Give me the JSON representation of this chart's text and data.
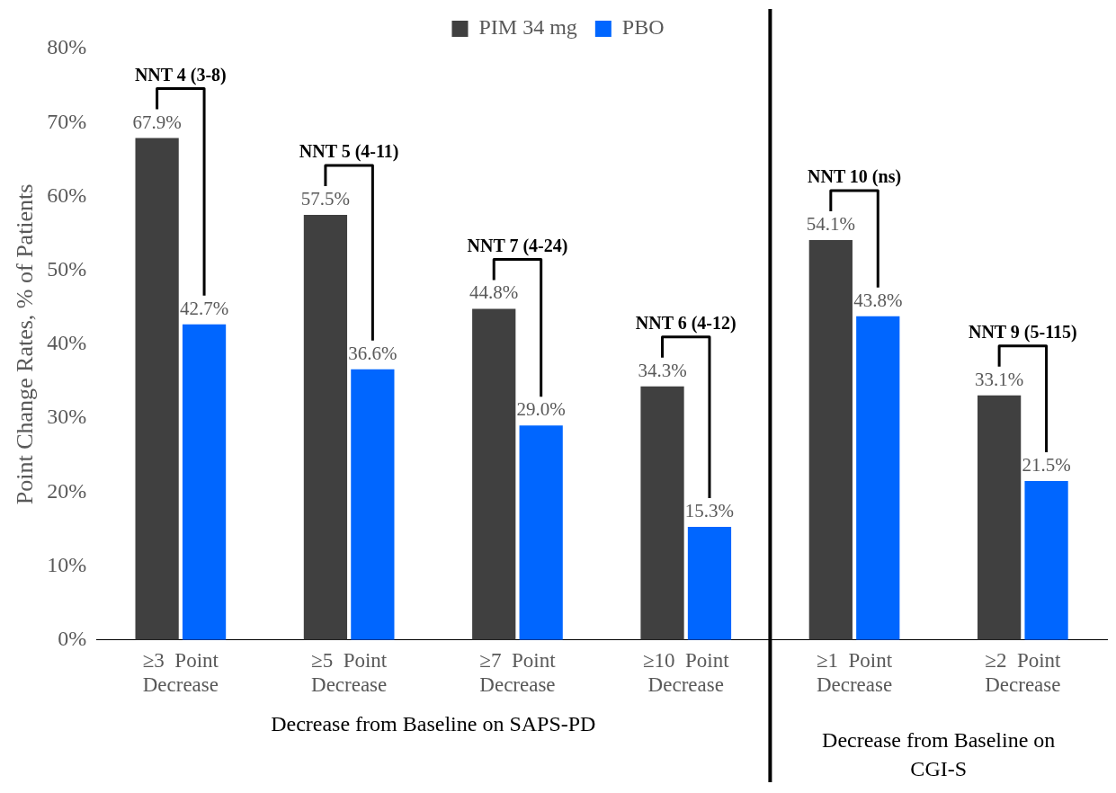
{
  "chart_data": {
    "type": "bar",
    "ylabel": "Point Change Rates, % of Patients",
    "categories": [
      "≥3  Point Decrease",
      "≥5  Point Decrease",
      "≥7  Point Decrease",
      "≥10  Point Decrease",
      "≥1  Point Decrease",
      "≥2  Point Decrease"
    ],
    "series": [
      {
        "name": "PIM 34 mg",
        "color": "#404040",
        "values": [
          67.9,
          57.5,
          44.8,
          34.3,
          54.1,
          33.1
        ],
        "value_labels": [
          "67.9%",
          "57.5%",
          "44.8%",
          "34.3%",
          "54.1%",
          "33.1%"
        ]
      },
      {
        "name": "PBO",
        "color": "#0066ff",
        "values": [
          42.7,
          36.6,
          29.0,
          15.3,
          43.8,
          21.5
        ],
        "value_labels": [
          "42.7%",
          "36.6%",
          "29.0%",
          "15.3%",
          "43.8%",
          "21.5%"
        ]
      }
    ],
    "ylim": [
      0,
      80
    ],
    "yticks": [
      {
        "value": 0,
        "label": "0%"
      },
      {
        "value": 10,
        "label": "10%"
      },
      {
        "value": 20,
        "label": "20%"
      },
      {
        "value": 30,
        "label": "30%"
      },
      {
        "value": 40,
        "label": "40%"
      },
      {
        "value": 50,
        "label": "50%"
      },
      {
        "value": 60,
        "label": "60%"
      },
      {
        "value": 70,
        "label": "70%"
      },
      {
        "value": 80,
        "label": "80%"
      }
    ],
    "grid": false,
    "legend": "top",
    "annotations": [
      "NNT 4 (3-8)",
      "NNT 5 (4-11)",
      "NNT 7 (4-24)",
      "NNT 6 (4-12)",
      "NNT 10 (ns)",
      "NNT 9 (5-115)",
      "Decrease from Baseline on SAPS-PD",
      "Decrease from Baseline on CGI-S"
    ]
  }
}
